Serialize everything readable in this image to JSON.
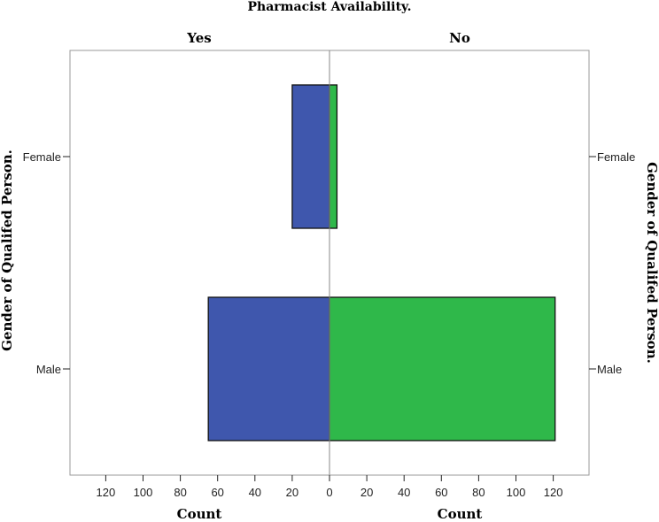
{
  "chart_data": {
    "type": "bar",
    "orientation": "horizontal",
    "layout": "population-pyramid",
    "title": "Pharmacist Availability.",
    "categories": [
      "Female",
      "Male"
    ],
    "series": [
      {
        "name": "Yes",
        "values": [
          20,
          65
        ],
        "color": "#3f57ad"
      },
      {
        "name": "No",
        "values": [
          4,
          121
        ],
        "color": "#2fb84a"
      }
    ],
    "xlabel_left": "Count",
    "xlabel_right": "Count",
    "ylabel_left": "Gender of Qualifed Person.",
    "ylabel_right": "Gender of Qualifed Person.",
    "x_ticks": [
      0,
      20,
      40,
      60,
      80,
      100,
      120
    ],
    "xlim": [
      0,
      140
    ],
    "grid": false
  }
}
